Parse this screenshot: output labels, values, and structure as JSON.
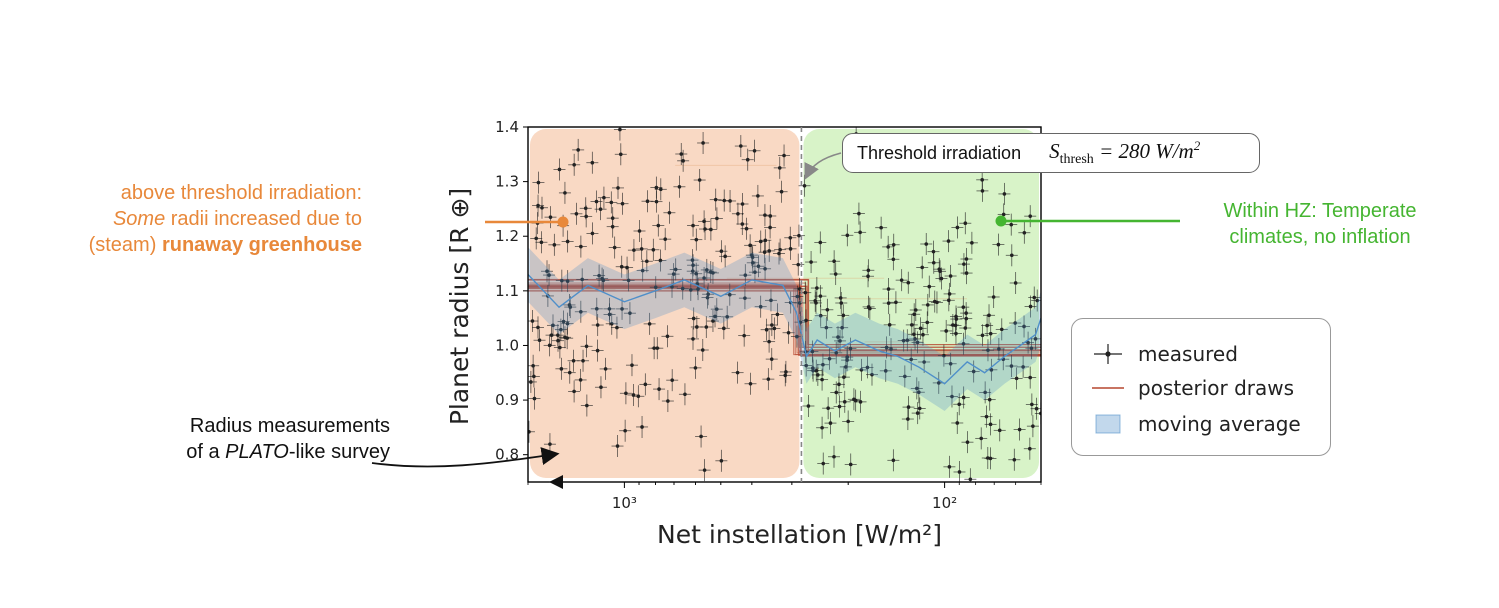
{
  "chart_data": {
    "type": "scatter",
    "xlabel": "Net instellation [W/m²]",
    "ylabel": "Planet radius [R ⊕]",
    "x_scale": "log-reversed",
    "xlim": [
      2000,
      50
    ],
    "ylim": [
      0.75,
      1.4
    ],
    "x_ticks": [
      {
        "value": 1000,
        "label": "10³"
      },
      {
        "value": 100,
        "label": "10²"
      }
    ],
    "y_ticks": [
      0.8,
      0.9,
      1.0,
      1.1,
      1.2,
      1.3,
      1.4
    ],
    "y_tick_labels": [
      "0.8",
      "0.9",
      "1.0",
      "1.1",
      "1.2",
      "1.3",
      "1.4"
    ],
    "threshold_irradiation": 280,
    "regions": [
      {
        "name": "above threshold",
        "x_range": [
          2000,
          280
        ],
        "color": "#f9d9c4"
      },
      {
        "name": "habitable zone",
        "x_range": [
          280,
          50
        ],
        "color": "#d8f3c8"
      }
    ],
    "series": [
      {
        "name": "measured",
        "kind": "points_with_errorbars",
        "color": "#222222",
        "count_estimate": 420
      },
      {
        "name": "posterior draws",
        "kind": "step_lines",
        "color": "#b5462e",
        "inner_level": 1.11,
        "outer_level": 0.99
      },
      {
        "name": "moving average",
        "kind": "line_with_band",
        "color": "#4f8fc9",
        "x": [
          2000,
          1600,
          1300,
          1000,
          800,
          650,
          500,
          400,
          320,
          290,
          270,
          250,
          220,
          190,
          160,
          140,
          120,
          100,
          85,
          75,
          65,
          58,
          52,
          50
        ],
        "y": [
          1.13,
          1.07,
          1.11,
          1.08,
          1.1,
          1.12,
          1.09,
          1.12,
          1.11,
          1.06,
          0.98,
          1.01,
          0.99,
          1.01,
          0.99,
          0.98,
          0.96,
          0.93,
          0.97,
          0.95,
          0.98,
          1.0,
          1.02,
          1.05
        ],
        "band_halfwidth": 0.05
      }
    ],
    "legend_position": "right"
  },
  "annotations": {
    "left_line1": "above threshold irradiation:",
    "left_italic": "Some",
    "left_line2_rest": " radii increased due to",
    "left_line3_prefix": "(steam) ",
    "left_bold": "runaway greenhouse",
    "right_line1": "Within HZ: Temperate",
    "right_line2": "climates, no inflation",
    "bottom_line1": "Radius measurements",
    "bottom_line2_prefix": "of a ",
    "bottom_italic": "PLATO",
    "bottom_line2_suffix": "-like survey",
    "threshold_label": "Threshold irradiation",
    "threshold_formula_S": "S",
    "threshold_formula_sub": "thresh",
    "threshold_formula_rest": " = 280 W/m",
    "threshold_formula_sup": "2"
  },
  "legend": {
    "measured": "measured",
    "posterior": "posterior draws",
    "moving_average": "moving average"
  },
  "colors": {
    "orange_annotation": "#e8883a",
    "green_annotation": "#45b531",
    "errorbar": "#222222",
    "posterior": "#b5462e",
    "moving_avg": "#4f8fc9"
  }
}
